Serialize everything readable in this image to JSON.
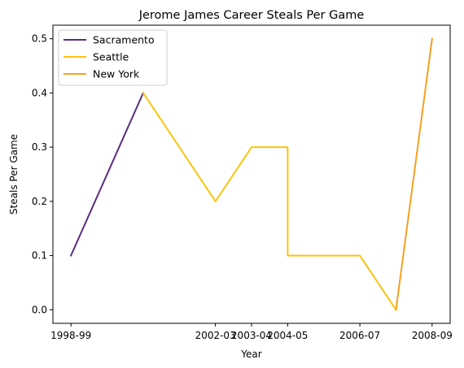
{
  "chart_data": {
    "type": "line",
    "title": "Jerome James Career Steals Per Game",
    "xlabel": "Year",
    "ylabel": "Steals Per Game",
    "x_tick_labels": [
      "1998-99",
      "2002-03",
      "2003-04",
      "2004-05",
      "2006-07",
      "2008-09"
    ],
    "y_tick_labels": [
      "0.0",
      "0.1",
      "0.2",
      "0.3",
      "0.4",
      "0.5"
    ],
    "y_ticks": [
      0.0,
      0.1,
      0.2,
      0.3,
      0.4,
      0.5
    ],
    "ylim": [
      -0.025,
      0.525
    ],
    "grid": false,
    "legend_position": "top-left",
    "series": [
      {
        "name": "Sacramento",
        "color": "#5a2d81",
        "points": [
          {
            "x": "1998-99",
            "y": 0.1
          },
          {
            "x": "2000-01",
            "y": 0.4
          }
        ]
      },
      {
        "name": "Seattle",
        "color": "#ffc20e",
        "points": [
          {
            "x": "2000-01",
            "y": 0.4
          },
          {
            "x": "2002-03",
            "y": 0.2
          },
          {
            "x": "2003-04",
            "y": 0.3
          },
          {
            "x": "2004-05",
            "y": 0.3
          },
          {
            "x": "2004-05",
            "y": 0.1
          },
          {
            "x": "2006-07",
            "y": 0.1
          },
          {
            "x": "2007-08",
            "y": 0.0
          }
        ]
      },
      {
        "name": "New York",
        "color": "#f7a020",
        "points": [
          {
            "x": "2007-08",
            "y": 0.0
          },
          {
            "x": "2008-09",
            "y": 0.5
          }
        ]
      }
    ]
  }
}
